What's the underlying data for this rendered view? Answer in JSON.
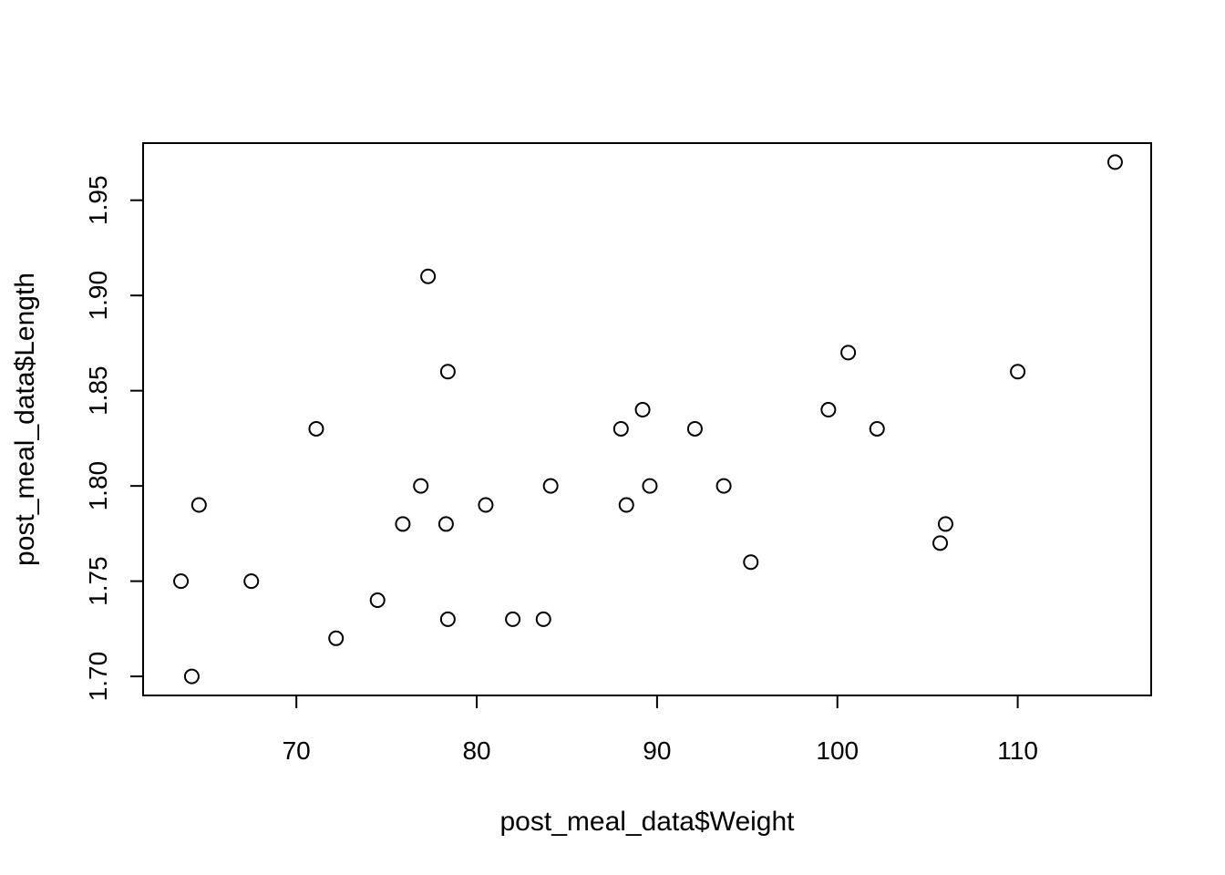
{
  "chart_data": {
    "type": "scatter",
    "title": "",
    "xlabel": "post_meal_data$Weight",
    "ylabel": "post_meal_data$Length",
    "xlim": [
      61.5,
      117.4
    ],
    "ylim": [
      1.69,
      1.98
    ],
    "xticks": [
      70,
      80,
      90,
      100,
      110
    ],
    "yticks": [
      1.7,
      1.75,
      1.8,
      1.85,
      1.9,
      1.95
    ],
    "xtick_labels": [
      "70",
      "80",
      "90",
      "100",
      "110"
    ],
    "ytick_labels": [
      "1.70",
      "1.75",
      "1.80",
      "1.85",
      "1.90",
      "1.95"
    ],
    "grid": false,
    "marker": "open-circle",
    "color": "#000000",
    "points": [
      {
        "x": 63.6,
        "y": 1.75
      },
      {
        "x": 64.2,
        "y": 1.7
      },
      {
        "x": 64.6,
        "y": 1.79
      },
      {
        "x": 67.5,
        "y": 1.75
      },
      {
        "x": 71.1,
        "y": 1.83
      },
      {
        "x": 72.2,
        "y": 1.72
      },
      {
        "x": 74.5,
        "y": 1.74
      },
      {
        "x": 75.9,
        "y": 1.78
      },
      {
        "x": 76.9,
        "y": 1.8
      },
      {
        "x": 77.3,
        "y": 1.91
      },
      {
        "x": 78.3,
        "y": 1.78
      },
      {
        "x": 78.4,
        "y": 1.86
      },
      {
        "x": 78.4,
        "y": 1.73
      },
      {
        "x": 80.5,
        "y": 1.79
      },
      {
        "x": 82.0,
        "y": 1.73
      },
      {
        "x": 83.7,
        "y": 1.73
      },
      {
        "x": 84.1,
        "y": 1.8
      },
      {
        "x": 88.0,
        "y": 1.83
      },
      {
        "x": 88.3,
        "y": 1.79
      },
      {
        "x": 89.2,
        "y": 1.84
      },
      {
        "x": 89.6,
        "y": 1.8
      },
      {
        "x": 92.1,
        "y": 1.83
      },
      {
        "x": 93.7,
        "y": 1.8
      },
      {
        "x": 95.2,
        "y": 1.76
      },
      {
        "x": 99.5,
        "y": 1.84
      },
      {
        "x": 100.6,
        "y": 1.87
      },
      {
        "x": 102.2,
        "y": 1.83
      },
      {
        "x": 105.7,
        "y": 1.77
      },
      {
        "x": 106.0,
        "y": 1.78
      },
      {
        "x": 110.0,
        "y": 1.86
      },
      {
        "x": 115.4,
        "y": 1.97
      }
    ]
  }
}
